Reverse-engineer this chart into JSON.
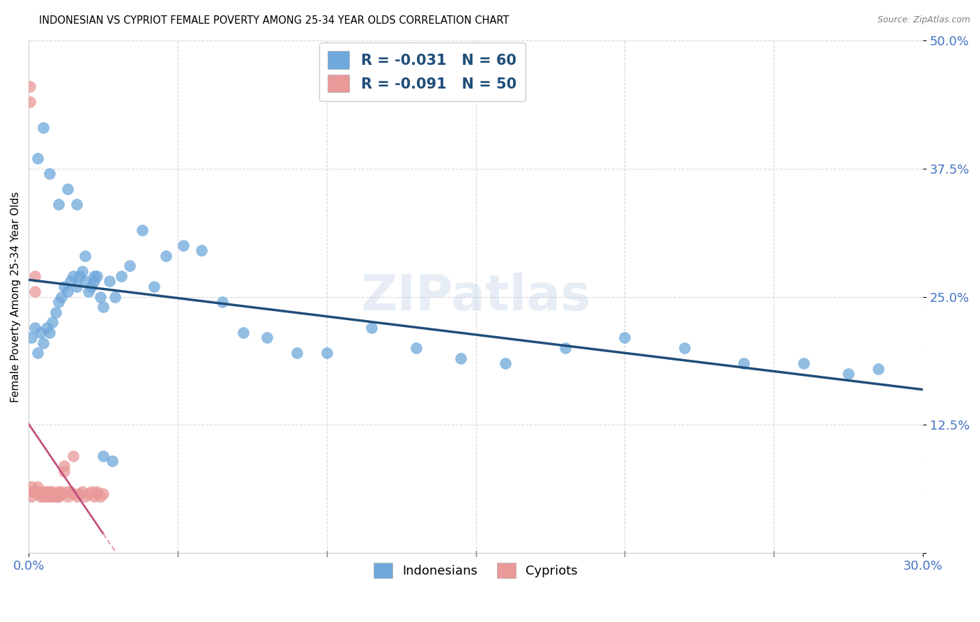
{
  "title": "INDONESIAN VS CYPRIOT FEMALE POVERTY AMONG 25-34 YEAR OLDS CORRELATION CHART",
  "source": "Source: ZipAtlas.com",
  "ylabel": "Female Poverty Among 25-34 Year Olds",
  "xlim": [
    0.0,
    0.3
  ],
  "ylim": [
    0.0,
    0.5
  ],
  "xticks": [
    0.0,
    0.05,
    0.1,
    0.15,
    0.2,
    0.25,
    0.3
  ],
  "xticklabels": [
    "0.0%",
    "",
    "",
    "",
    "",
    "",
    "30.0%"
  ],
  "yticks": [
    0.0,
    0.125,
    0.25,
    0.375,
    0.5
  ],
  "yticklabels": [
    "",
    "12.5%",
    "25.0%",
    "37.5%",
    "50.0%"
  ],
  "indonesian_x": [
    0.001,
    0.002,
    0.003,
    0.004,
    0.005,
    0.006,
    0.007,
    0.008,
    0.009,
    0.01,
    0.011,
    0.012,
    0.013,
    0.014,
    0.015,
    0.016,
    0.017,
    0.018,
    0.019,
    0.02,
    0.021,
    0.022,
    0.023,
    0.024,
    0.025,
    0.027,
    0.029,
    0.031,
    0.034,
    0.038,
    0.042,
    0.046,
    0.052,
    0.058,
    0.065,
    0.072,
    0.08,
    0.09,
    0.1,
    0.115,
    0.13,
    0.145,
    0.16,
    0.18,
    0.2,
    0.22,
    0.24,
    0.26,
    0.275,
    0.285,
    0.003,
    0.005,
    0.007,
    0.01,
    0.013,
    0.016,
    0.019,
    0.022,
    0.025,
    0.028
  ],
  "indonesian_y": [
    0.21,
    0.22,
    0.195,
    0.215,
    0.205,
    0.22,
    0.215,
    0.225,
    0.235,
    0.245,
    0.25,
    0.26,
    0.255,
    0.265,
    0.27,
    0.26,
    0.27,
    0.275,
    0.265,
    0.255,
    0.26,
    0.265,
    0.27,
    0.25,
    0.24,
    0.265,
    0.25,
    0.27,
    0.28,
    0.315,
    0.26,
    0.29,
    0.3,
    0.295,
    0.245,
    0.215,
    0.21,
    0.195,
    0.195,
    0.22,
    0.2,
    0.19,
    0.185,
    0.2,
    0.21,
    0.2,
    0.185,
    0.185,
    0.175,
    0.18,
    0.385,
    0.415,
    0.37,
    0.34,
    0.355,
    0.34,
    0.29,
    0.27,
    0.095,
    0.09
  ],
  "cypriot_x": [
    0.0005,
    0.0005,
    0.001,
    0.001,
    0.001,
    0.002,
    0.002,
    0.002,
    0.003,
    0.003,
    0.003,
    0.004,
    0.004,
    0.005,
    0.005,
    0.005,
    0.006,
    0.006,
    0.006,
    0.007,
    0.007,
    0.007,
    0.008,
    0.008,
    0.008,
    0.009,
    0.009,
    0.01,
    0.01,
    0.01,
    0.011,
    0.011,
    0.012,
    0.012,
    0.013,
    0.013,
    0.014,
    0.015,
    0.015,
    0.016,
    0.017,
    0.018,
    0.019,
    0.02,
    0.021,
    0.022,
    0.023,
    0.023,
    0.024,
    0.025
  ],
  "cypriot_y": [
    0.455,
    0.44,
    0.065,
    0.06,
    0.055,
    0.27,
    0.255,
    0.06,
    0.065,
    0.058,
    0.06,
    0.055,
    0.058,
    0.06,
    0.055,
    0.058,
    0.06,
    0.055,
    0.058,
    0.055,
    0.058,
    0.06,
    0.055,
    0.058,
    0.06,
    0.055,
    0.058,
    0.055,
    0.06,
    0.055,
    0.058,
    0.06,
    0.085,
    0.08,
    0.06,
    0.055,
    0.06,
    0.095,
    0.058,
    0.055,
    0.058,
    0.06,
    0.055,
    0.058,
    0.06,
    0.055,
    0.058,
    0.06,
    0.055,
    0.058
  ],
  "indonesian_color": "#6fa8dc",
  "cypriot_color": "#ea9999",
  "indonesian_R": -0.031,
  "indonesian_N": 60,
  "cypriot_R": -0.091,
  "cypriot_N": 50,
  "trend_indonesian_color": "#1f4e79",
  "trend_cypriot_solid_color": "#c0507a",
  "trend_cypriot_dash_color": "#e6a0b8",
  "background_color": "#ffffff",
  "grid_color": "#cccccc",
  "title_color": "#000000",
  "axis_label_color": "#000000",
  "tick_label_color": "#4472c4",
  "source_color": "#808080",
  "watermark_text": "ZIPatlas",
  "legend_label_1": "R = -0.031   N = 60",
  "legend_label_2": "R = -0.091   N = 50",
  "bottom_legend_1": "Indonesians",
  "bottom_legend_2": "Cypriots"
}
